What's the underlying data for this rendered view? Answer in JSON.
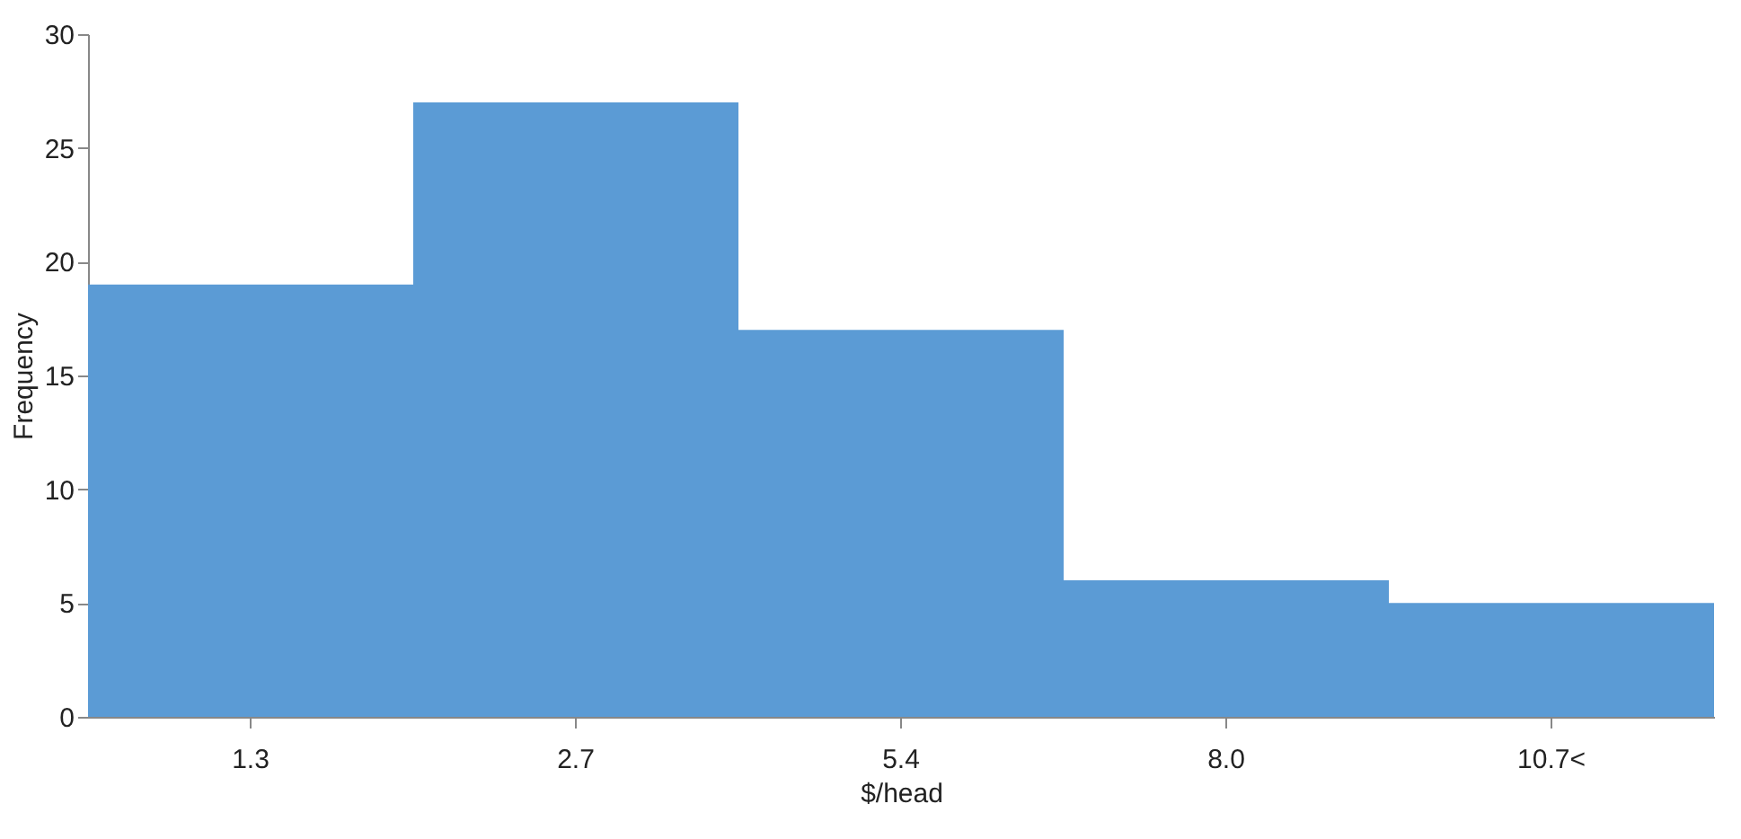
{
  "chart_data": {
    "type": "bar",
    "xlabel": "$/head",
    "ylabel": "Frequency",
    "categories": [
      "1.3",
      "2.7",
      "5.4",
      "8.0",
      "10.7<"
    ],
    "values": [
      19,
      27,
      17,
      6,
      5
    ],
    "color": "#5b9bd5",
    "ylim": [
      0,
      30
    ],
    "yticks": [
      0,
      5,
      10,
      15,
      20,
      25,
      30
    ],
    "grid": false
  }
}
